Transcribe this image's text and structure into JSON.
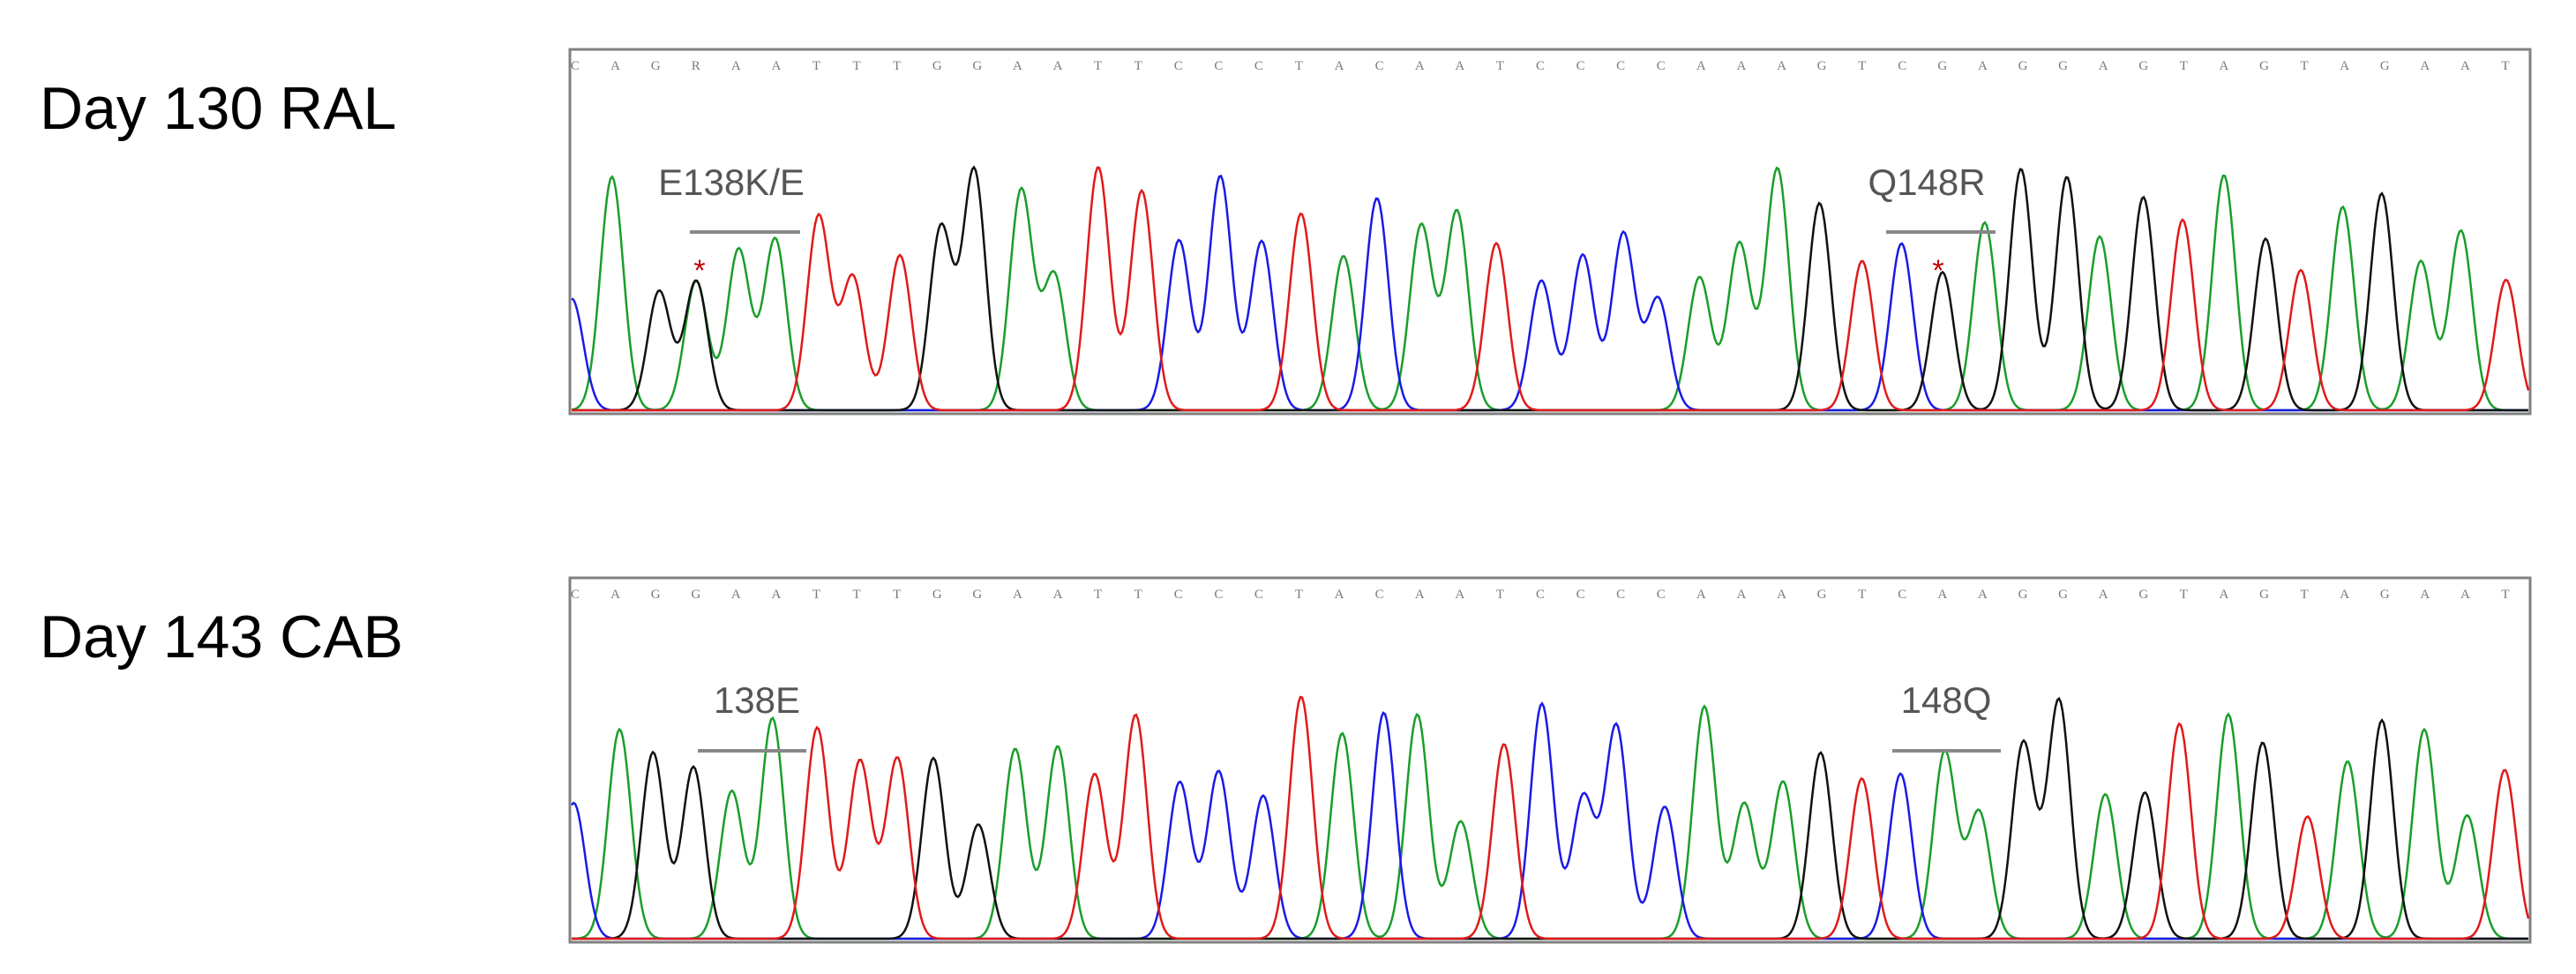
{
  "panels": [
    {
      "label": "Day 130 RAL",
      "sequence": [
        "C",
        "A",
        "G",
        "R",
        "A",
        "A",
        "T",
        "T",
        "T",
        "G",
        "G",
        "A",
        "A",
        "T",
        "T",
        "C",
        "C",
        "C",
        "T",
        "A",
        "C",
        "A",
        "A",
        "T",
        "C",
        "C",
        "C",
        "C",
        "A",
        "A",
        "A",
        "G",
        "T",
        "C",
        "G",
        "A",
        "G",
        "G",
        "A",
        "G",
        "T",
        "A",
        "G",
        "T",
        "A",
        "G",
        "A",
        "A",
        "T"
      ],
      "mutations": [
        {
          "text": "E138K/E",
          "marker": "*"
        },
        {
          "text": "Q148R",
          "marker": "*"
        }
      ]
    },
    {
      "label": "Day 143 CAB",
      "sequence": [
        "C",
        "A",
        "G",
        "G",
        "A",
        "A",
        "T",
        "T",
        "T",
        "G",
        "G",
        "A",
        "A",
        "T",
        "T",
        "C",
        "C",
        "C",
        "T",
        "A",
        "C",
        "A",
        "A",
        "T",
        "C",
        "C",
        "C",
        "C",
        "A",
        "A",
        "A",
        "G",
        "T",
        "C",
        "A",
        "A",
        "G",
        "G",
        "A",
        "G",
        "T",
        "A",
        "G",
        "T",
        "A",
        "G",
        "A",
        "A",
        "T"
      ],
      "mutations": [
        {
          "text": "138E"
        },
        {
          "text": "148Q"
        }
      ]
    }
  ]
}
